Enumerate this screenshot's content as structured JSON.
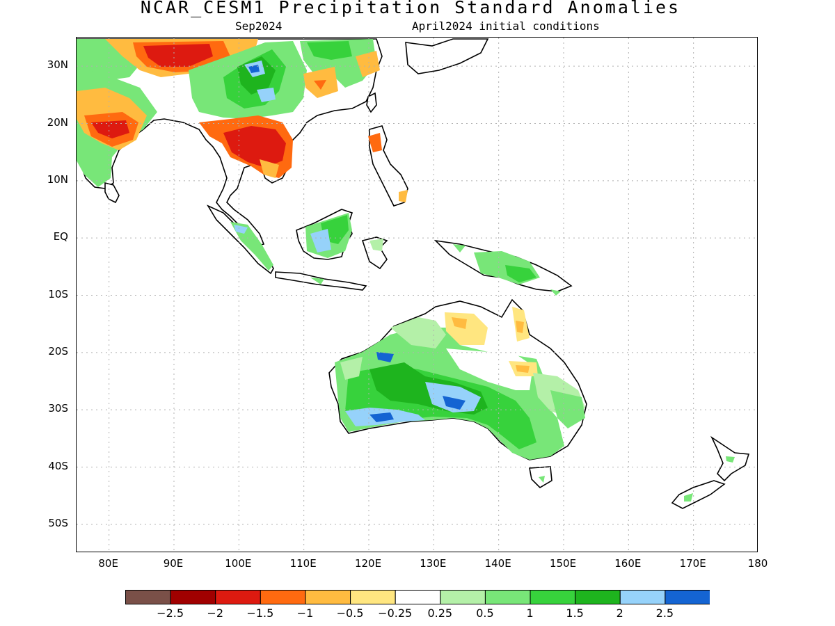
{
  "title": "NCAR_CESM1 Precipitation Standard Anomalies",
  "subtitle_left": "Sep2024",
  "subtitle_right": "April2024 initial conditions",
  "map": {
    "lon_range": [
      75,
      180
    ],
    "lat_range": [
      -55,
      35
    ],
    "gridlines": true,
    "lat_ticks": [
      "30N",
      "20N",
      "10N",
      "EQ",
      "10S",
      "20S",
      "30S",
      "40S",
      "50S"
    ],
    "lon_ticks": [
      "80E",
      "90E",
      "100E",
      "110E",
      "120E",
      "130E",
      "140E",
      "150E",
      "160E",
      "170E",
      "180"
    ]
  },
  "colorbar": {
    "colors": [
      "#7a5048",
      "#a00000",
      "#dd1a10",
      "#ff6a10",
      "#ffbb40",
      "#ffe680",
      "#ffffff",
      "#b4f0a8",
      "#78e678",
      "#37d23c",
      "#1eb41e",
      "#96d2fa",
      "#1464d2"
    ],
    "labels": [
      "−2.5",
      "−2",
      "−1.5",
      "−1",
      "−0.5",
      "−0.25",
      "0.25",
      "0.5",
      "1",
      "1.5",
      "2",
      "2.5"
    ]
  }
}
